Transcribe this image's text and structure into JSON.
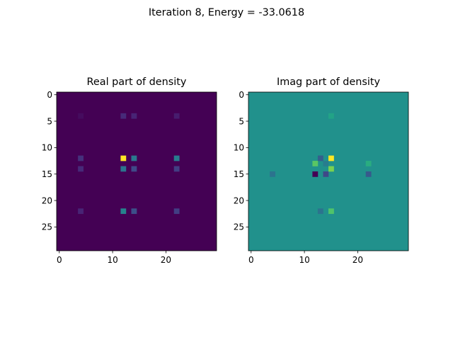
{
  "figure": {
    "suptitle": "Iteration 8, Energy = -33.0618"
  },
  "chart_data": [
    {
      "type": "heatmap",
      "title": "Real part of density",
      "colormap": "viridis",
      "grid": false,
      "size": [
        30,
        30
      ],
      "xlim": [
        -0.5,
        29.5
      ],
      "ylim": [
        29.5,
        -0.5
      ],
      "xticks": [
        0,
        10,
        20
      ],
      "yticks": [
        0,
        5,
        10,
        15,
        20,
        25
      ],
      "vmin": 0.0,
      "vmax": 1.0,
      "background_value": 0.0,
      "cells": [
        {
          "x": 4,
          "y": 4,
          "v": 0.03
        },
        {
          "x": 12,
          "y": 4,
          "v": 0.12
        },
        {
          "x": 14,
          "y": 4,
          "v": 0.1
        },
        {
          "x": 22,
          "y": 4,
          "v": 0.08
        },
        {
          "x": 4,
          "y": 12,
          "v": 0.14
        },
        {
          "x": 12,
          "y": 12,
          "v": 1.0
        },
        {
          "x": 14,
          "y": 12,
          "v": 0.4
        },
        {
          "x": 22,
          "y": 12,
          "v": 0.42
        },
        {
          "x": 4,
          "y": 14,
          "v": 0.12
        },
        {
          "x": 12,
          "y": 14,
          "v": 0.38
        },
        {
          "x": 14,
          "y": 14,
          "v": 0.22
        },
        {
          "x": 22,
          "y": 14,
          "v": 0.18
        },
        {
          "x": 4,
          "y": 22,
          "v": 0.1
        },
        {
          "x": 12,
          "y": 22,
          "v": 0.44
        },
        {
          "x": 14,
          "y": 22,
          "v": 0.24
        },
        {
          "x": 22,
          "y": 22,
          "v": 0.18
        }
      ]
    },
    {
      "type": "heatmap",
      "title": "Imag part of density",
      "colormap": "viridis",
      "grid": false,
      "size": [
        30,
        30
      ],
      "xlim": [
        -0.5,
        29.5
      ],
      "ylim": [
        29.5,
        -0.5
      ],
      "xticks": [
        0,
        10,
        20
      ],
      "yticks": [
        0,
        5,
        10,
        15,
        20,
        25
      ],
      "vmin": 0.0,
      "vmax": 1.0,
      "background_value": 0.5,
      "cells": [
        {
          "x": 15,
          "y": 4,
          "v": 0.58
        },
        {
          "x": 13,
          "y": 12,
          "v": 0.3
        },
        {
          "x": 15,
          "y": 12,
          "v": 1.0
        },
        {
          "x": 12,
          "y": 13,
          "v": 0.74
        },
        {
          "x": 14,
          "y": 13,
          "v": 0.42
        },
        {
          "x": 22,
          "y": 13,
          "v": 0.62
        },
        {
          "x": 4,
          "y": 15,
          "v": 0.38
        },
        {
          "x": 12,
          "y": 15,
          "v": 0.0
        },
        {
          "x": 14,
          "y": 15,
          "v": 0.22
        },
        {
          "x": 15,
          "y": 14,
          "v": 0.8
        },
        {
          "x": 22,
          "y": 15,
          "v": 0.28
        },
        {
          "x": 13,
          "y": 22,
          "v": 0.38
        },
        {
          "x": 15,
          "y": 22,
          "v": 0.72
        }
      ]
    }
  ]
}
